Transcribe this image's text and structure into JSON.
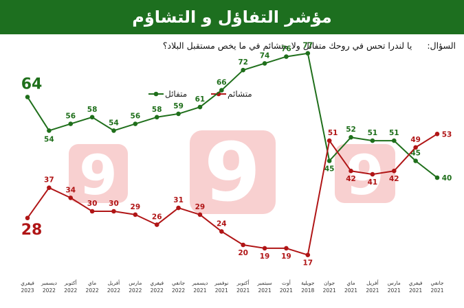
{
  "header": {
    "title": "مؤشر التفاؤل و التشاؤم"
  },
  "question": {
    "label": "السؤال:",
    "text": "يا لندرا تحس في روحك متفائل ولا متشائم في ما يخص مستقبل البلاد؟"
  },
  "colors": {
    "header_bg": "#1d6f1f",
    "optimist": "#1f6f1b",
    "pessimist": "#b01516"
  },
  "chart_data": {
    "type": "line",
    "categories": [
      [
        "فيفري",
        "2023"
      ],
      [
        "ديسمبر",
        "2022"
      ],
      [
        "أكتوبر",
        "2022"
      ],
      [
        "ماي",
        "2022"
      ],
      [
        "أفريل",
        "2022"
      ],
      [
        "مارس",
        "2022"
      ],
      [
        "فيفري",
        "2022"
      ],
      [
        "جانفي",
        "2022"
      ],
      [
        "ديسمبر",
        "2021"
      ],
      [
        "نوفمبر",
        "2021"
      ],
      [
        "أكتوبر",
        "2021"
      ],
      [
        "سبتمبر",
        "2021"
      ],
      [
        "أوت",
        "2021"
      ],
      [
        "جويلية",
        "2018"
      ],
      [
        "جوان",
        "2021"
      ],
      [
        "ماي",
        "2021"
      ],
      [
        "أفريل",
        "2021"
      ],
      [
        "مارس",
        "2021"
      ],
      [
        "فيفري",
        "2021"
      ],
      [
        "جانفي",
        "2021"
      ]
    ],
    "series": [
      {
        "name": "متفائل",
        "color": "#1f6f1b",
        "values": [
          64,
          54,
          56,
          58,
          54,
          56,
          58,
          59,
          61,
          66,
          72,
          74,
          76,
          77,
          45,
          52,
          51,
          51,
          45,
          40
        ]
      },
      {
        "name": "متشائم",
        "color": "#b01516",
        "values": [
          28,
          37,
          34,
          30,
          30,
          29,
          26,
          31,
          29,
          24,
          20,
          19,
          19,
          17,
          51,
          42,
          41,
          42,
          49,
          53
        ]
      }
    ],
    "legend_position": "top-left",
    "grid": false
  }
}
